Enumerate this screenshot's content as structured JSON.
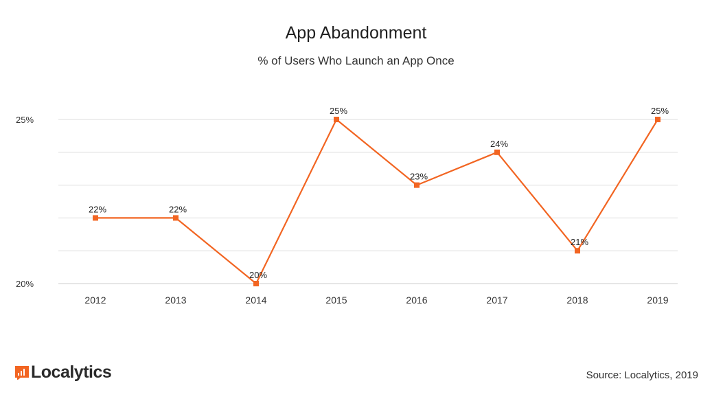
{
  "chart_data": {
    "type": "line",
    "title": "App Abandonment",
    "subtitle": "% of Users Who Launch an App Once",
    "categories": [
      "2012",
      "2013",
      "2014",
      "2015",
      "2016",
      "2017",
      "2018",
      "2019"
    ],
    "values": [
      22,
      22,
      20,
      25,
      23,
      24,
      21,
      25
    ],
    "value_labels": [
      "22%",
      "22%",
      "20%",
      "25%",
      "23%",
      "24%",
      "21%",
      "25%"
    ],
    "ylim": [
      20,
      25
    ],
    "y_ticks": [
      20,
      25
    ],
    "y_tick_labels": [
      "20%",
      "25%"
    ],
    "gridlines": true,
    "line_color": "#f26522"
  },
  "footer": {
    "logo_text": "Localytics",
    "source": "Source: Localytics, 2019"
  },
  "colors": {
    "accent": "#f26522",
    "grid": "#dddddd"
  }
}
